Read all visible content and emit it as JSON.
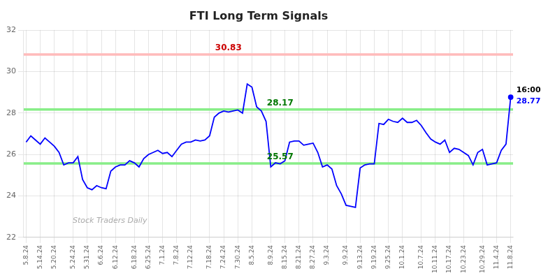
{
  "chart_data": {
    "type": "line",
    "title": "FTI Long Term Signals",
    "categories": [
      "5.8.24",
      null,
      null,
      "5.14.24",
      null,
      null,
      "5.20.24",
      null,
      null,
      null,
      "5.24.24",
      null,
      null,
      "5.31.24",
      null,
      null,
      "6.6.24",
      null,
      null,
      "6.12.24",
      null,
      null,
      null,
      "6.18.24",
      null,
      null,
      "6.25.24",
      null,
      null,
      "7.1.24",
      null,
      null,
      "7.8.24",
      null,
      null,
      "7.12.24",
      null,
      null,
      null,
      "7.18.24",
      null,
      null,
      "7.24.24",
      null,
      null,
      "7.30.24",
      null,
      null,
      "8.5.24",
      null,
      null,
      null,
      "8.9.24",
      null,
      null,
      "8.15.24",
      null,
      null,
      "8.21.24",
      null,
      null,
      "8.27.24",
      null,
      null,
      "9.3.24",
      null,
      null,
      null,
      "9.9.24",
      null,
      null,
      "9.13.24",
      null,
      null,
      "9.19.24",
      null,
      null,
      "9.25.24",
      null,
      null,
      "10.1.24",
      null,
      null,
      null,
      "10.7.24",
      null,
      null,
      "10.11.24",
      null,
      null,
      "10.17.24",
      null,
      null,
      "10.23.24",
      null,
      null,
      null,
      "10.29.24",
      null,
      null,
      "11.4.24",
      null,
      null,
      "11.8.24"
    ],
    "values": [
      26.6,
      26.9,
      26.7,
      26.5,
      26.8,
      26.6,
      26.4,
      26.1,
      25.5,
      25.6,
      25.6,
      25.9,
      24.8,
      24.4,
      24.3,
      24.5,
      24.4,
      24.35,
      25.2,
      25.4,
      25.5,
      25.5,
      25.7,
      25.6,
      25.4,
      25.8,
      26.0,
      26.1,
      26.2,
      26.05,
      26.1,
      25.9,
      26.2,
      26.5,
      26.6,
      26.6,
      26.7,
      26.65,
      26.7,
      26.9,
      27.8,
      28.0,
      28.1,
      28.05,
      28.1,
      28.15,
      28.0,
      29.4,
      29.25,
      28.3,
      28.1,
      27.6,
      25.4,
      25.6,
      25.55,
      25.7,
      26.6,
      26.65,
      26.65,
      26.45,
      26.5,
      26.55,
      26.1,
      25.4,
      25.5,
      25.3,
      24.5,
      24.1,
      23.55,
      23.5,
      23.45,
      25.35,
      25.5,
      25.55,
      25.55,
      27.5,
      27.45,
      27.7,
      27.6,
      27.55,
      27.75,
      27.55,
      27.55,
      27.65,
      27.4,
      27.05,
      26.75,
      26.6,
      26.5,
      26.7,
      26.1,
      26.3,
      26.25,
      26.1,
      25.95,
      25.5,
      26.1,
      26.25,
      25.5,
      25.55,
      25.6,
      26.2,
      26.5,
      28.77
    ],
    "color": "blue",
    "ylim": [
      22,
      32
    ],
    "yticks": [
      22,
      24,
      26,
      28,
      30,
      32
    ],
    "grid": true,
    "reference_lines": [
      {
        "value": 30.83,
        "color": "#ffbbbb",
        "label": "30.83",
        "label_color": "#cc0000"
      },
      {
        "value": 28.17,
        "color": "#88ee88",
        "label": "28.17",
        "label_color": "#007700"
      },
      {
        "value": 25.57,
        "color": "#88ee88",
        "label": "25.57",
        "label_color": "#007700"
      }
    ],
    "annotations": [
      {
        "text": "16:00",
        "color": "black"
      },
      {
        "text": "28.77",
        "color": "blue"
      }
    ],
    "watermark": "Stock Traders Daily"
  }
}
